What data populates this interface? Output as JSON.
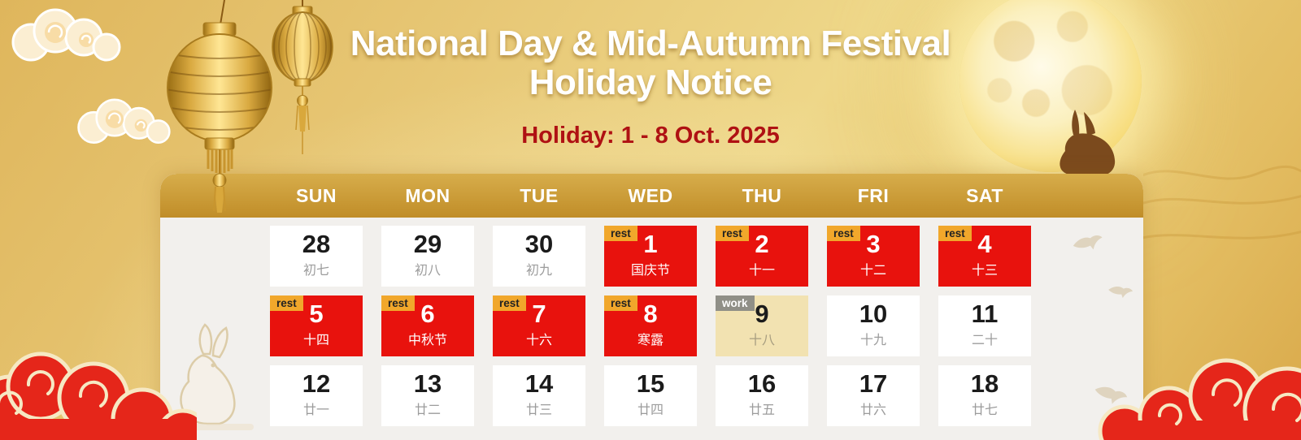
{
  "header": {
    "title_line1": "National Day & Mid-Autumn Festival",
    "title_line2": "Holiday Notice",
    "subtitle": "Holiday: 1 - 8 Oct. 2025"
  },
  "calendar": {
    "day_headers": [
      "SUN",
      "MON",
      "TUE",
      "WED",
      "THU",
      "FRI",
      "SAT"
    ],
    "badge_labels": {
      "rest": "rest",
      "work": "work"
    },
    "days": [
      {
        "date": "28",
        "lunar": "初七",
        "type": "normal"
      },
      {
        "date": "29",
        "lunar": "初八",
        "type": "normal"
      },
      {
        "date": "30",
        "lunar": "初九",
        "type": "normal"
      },
      {
        "date": "1",
        "lunar": "国庆节",
        "type": "rest"
      },
      {
        "date": "2",
        "lunar": "十一",
        "type": "rest"
      },
      {
        "date": "3",
        "lunar": "十二",
        "type": "rest"
      },
      {
        "date": "4",
        "lunar": "十三",
        "type": "rest"
      },
      {
        "date": "5",
        "lunar": "十四",
        "type": "rest"
      },
      {
        "date": "6",
        "lunar": "中秋节",
        "type": "rest"
      },
      {
        "date": "7",
        "lunar": "十六",
        "type": "rest"
      },
      {
        "date": "8",
        "lunar": "寒露",
        "type": "rest"
      },
      {
        "date": "9",
        "lunar": "十八",
        "type": "work"
      },
      {
        "date": "10",
        "lunar": "十九",
        "type": "normal"
      },
      {
        "date": "11",
        "lunar": "二十",
        "type": "normal"
      },
      {
        "date": "12",
        "lunar": "廿一",
        "type": "normal"
      },
      {
        "date": "13",
        "lunar": "廿二",
        "type": "normal"
      },
      {
        "date": "14",
        "lunar": "廿三",
        "type": "normal"
      },
      {
        "date": "15",
        "lunar": "廿四",
        "type": "normal"
      },
      {
        "date": "16",
        "lunar": "廿五",
        "type": "normal"
      },
      {
        "date": "17",
        "lunar": "廿六",
        "type": "normal"
      },
      {
        "date": "18",
        "lunar": "廿七",
        "type": "normal"
      }
    ]
  },
  "colors": {
    "holiday_red": "#E8120D",
    "rest_badge": "#F1A72B",
    "work_badge": "#908F87",
    "work_day_bg": "#F2E2B1",
    "panel_bg": "#F2F0ED",
    "header_bar_gold": "#C99A35",
    "subtitle_red": "#AF1113",
    "moon_gold": "#F7DD7E",
    "cloud_red": "#E5261A"
  }
}
